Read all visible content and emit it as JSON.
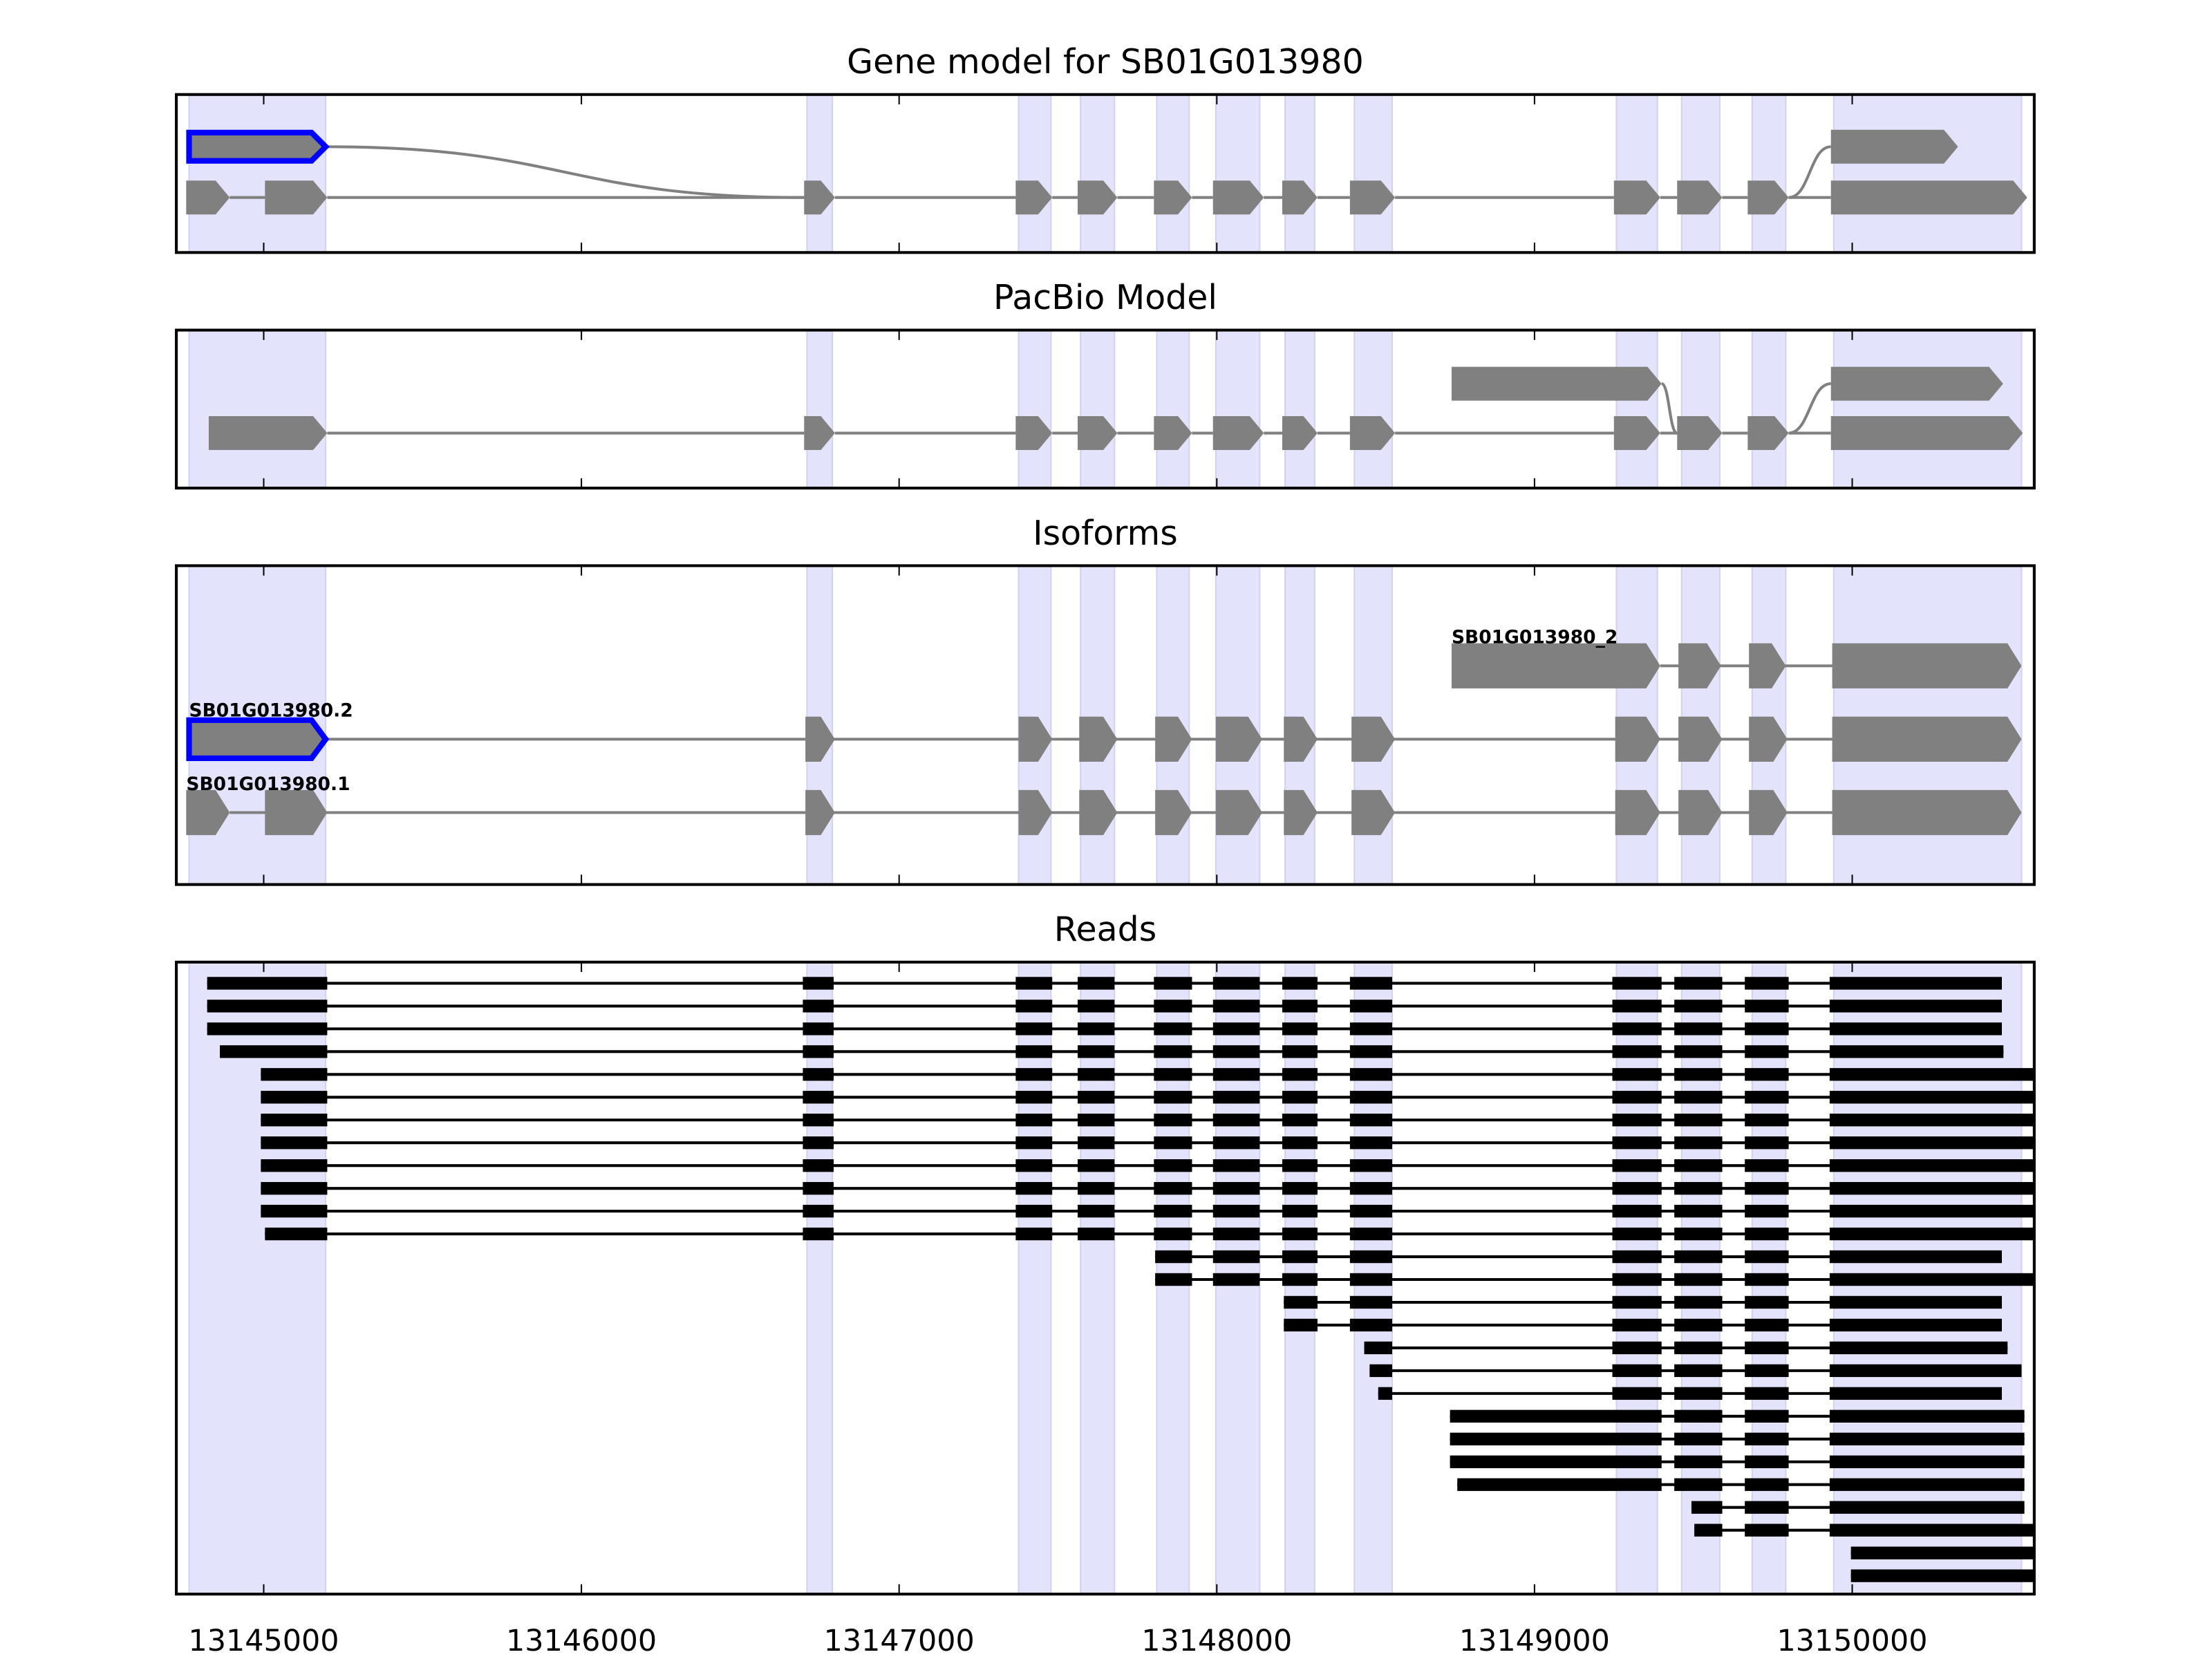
{
  "colors": {
    "band": "#e3e3fb",
    "band_edge": "#d2d2f0",
    "exon": "#808080",
    "highlight": "#0000ff",
    "read": "#000000"
  },
  "chart_data": {
    "type": "gene-track",
    "xlim": [
      13144725,
      13150573
    ],
    "xticks": [
      13145000,
      13146000,
      13147000,
      13148000,
      13149000,
      13150000
    ],
    "xtick_labels": [
      "13145000",
      "13146000",
      "13147000",
      "13148000",
      "13149000",
      "13150000"
    ],
    "exon_bands": [
      [
        13144765,
        13145195
      ],
      [
        13146710,
        13146790
      ],
      [
        13147376,
        13147478
      ],
      [
        13147571,
        13147678
      ],
      [
        13147811,
        13147913
      ],
      [
        13147997,
        13148135
      ],
      [
        13148215,
        13148308
      ],
      [
        13148433,
        13148552
      ],
      [
        13149258,
        13149387
      ],
      [
        13149463,
        13149583
      ],
      [
        13149685,
        13149791
      ],
      [
        13149942,
        13150533
      ]
    ],
    "panels": [
      {
        "title": "Gene model for SB01G013980",
        "rows": 2,
        "nodes": [
          {
            "s": 13144765,
            "e": 13145195,
            "row": 0,
            "hl": true
          },
          {
            "s": 13144756,
            "e": 13144893,
            "row": 1
          },
          {
            "s": 13145004,
            "e": 13145200,
            "row": 1
          },
          {
            "s": 13146701,
            "e": 13146798,
            "row": 1
          },
          {
            "s": 13147367,
            "e": 13147482,
            "row": 1
          },
          {
            "s": 13147562,
            "e": 13147687,
            "row": 1
          },
          {
            "s": 13147802,
            "e": 13147922,
            "row": 1
          },
          {
            "s": 13147988,
            "e": 13148148,
            "row": 1
          },
          {
            "s": 13148206,
            "e": 13148317,
            "row": 1
          },
          {
            "s": 13148419,
            "e": 13148561,
            "row": 1
          },
          {
            "s": 13149250,
            "e": 13149396,
            "row": 1
          },
          {
            "s": 13149449,
            "e": 13149591,
            "row": 1
          },
          {
            "s": 13149671,
            "e": 13149800,
            "row": 1
          },
          {
            "s": 13149933,
            "e": 13150551,
            "row": 1
          },
          {
            "s": 13149933,
            "e": 13150333,
            "row": 0
          }
        ],
        "edges": [
          [
            0,
            3
          ],
          [
            1,
            2
          ],
          [
            2,
            3
          ],
          [
            3,
            4
          ],
          [
            4,
            5
          ],
          [
            5,
            6
          ],
          [
            6,
            7
          ],
          [
            7,
            8
          ],
          [
            8,
            9
          ],
          [
            9,
            10
          ],
          [
            10,
            11
          ],
          [
            11,
            12
          ],
          [
            12,
            13
          ],
          [
            12,
            14
          ]
        ]
      },
      {
        "title": "PacBio Model",
        "rows": 2,
        "nodes": [
          {
            "s": 13144827,
            "e": 13145200,
            "row": 1
          },
          {
            "s": 13146701,
            "e": 13146798,
            "row": 1
          },
          {
            "s": 13147367,
            "e": 13147482,
            "row": 1
          },
          {
            "s": 13147562,
            "e": 13147687,
            "row": 1
          },
          {
            "s": 13147802,
            "e": 13147922,
            "row": 1
          },
          {
            "s": 13147988,
            "e": 13148148,
            "row": 1
          },
          {
            "s": 13148206,
            "e": 13148317,
            "row": 1
          },
          {
            "s": 13148419,
            "e": 13148561,
            "row": 1
          },
          {
            "s": 13149250,
            "e": 13149396,
            "row": 1
          },
          {
            "s": 13149449,
            "e": 13149591,
            "row": 1
          },
          {
            "s": 13149671,
            "e": 13149800,
            "row": 1
          },
          {
            "s": 13149933,
            "e": 13150537,
            "row": 1
          },
          {
            "s": 13148739,
            "e": 13149400,
            "row": 0
          },
          {
            "s": 13149933,
            "e": 13150475,
            "row": 0
          }
        ],
        "edges": [
          [
            0,
            1
          ],
          [
            1,
            2
          ],
          [
            2,
            3
          ],
          [
            3,
            4
          ],
          [
            4,
            5
          ],
          [
            5,
            6
          ],
          [
            6,
            7
          ],
          [
            7,
            8
          ],
          [
            8,
            9
          ],
          [
            9,
            10
          ],
          [
            10,
            11
          ],
          [
            12,
            9
          ],
          [
            10,
            13
          ]
        ]
      },
      {
        "title": "Isoforms",
        "isoforms": [
          {
            "label": "SB01G013980_2",
            "exons": [
              [
                13148739,
                13149396
              ],
              [
                13149453,
                13149587
              ],
              [
                13149675,
                13149791
              ],
              [
                13149937,
                13150533
              ]
            ]
          },
          {
            "label": "SB01G013980.2",
            "hl_first": true,
            "exons": [
              [
                13144765,
                13145195
              ],
              [
                13146705,
                13146798
              ],
              [
                13147376,
                13147482
              ],
              [
                13147567,
                13147687
              ],
              [
                13147806,
                13147922
              ],
              [
                13147997,
                13148143
              ],
              [
                13148211,
                13148317
              ],
              [
                13148424,
                13148561
              ],
              [
                13149254,
                13149396
              ],
              [
                13149453,
                13149591
              ],
              [
                13149675,
                13149796
              ],
              [
                13149937,
                13150533
              ]
            ]
          },
          {
            "label": "SB01G013980.1",
            "exons": [
              [
                13144756,
                13144893
              ],
              [
                13145004,
                13145200
              ],
              [
                13146705,
                13146798
              ],
              [
                13147376,
                13147482
              ],
              [
                13147567,
                13147687
              ],
              [
                13147806,
                13147922
              ],
              [
                13147997,
                13148143
              ],
              [
                13148211,
                13148317
              ],
              [
                13148424,
                13148561
              ],
              [
                13149254,
                13149396
              ],
              [
                13149453,
                13149591
              ],
              [
                13149675,
                13149796
              ],
              [
                13149937,
                13150533
              ]
            ]
          }
        ]
      },
      {
        "title": "Reads",
        "read_exons": [
          [
            13144700,
            13145200
          ],
          [
            13146697,
            13146794
          ],
          [
            13147367,
            13147482
          ],
          [
            13147562,
            13147678
          ],
          [
            13147802,
            13147922
          ],
          [
            13147988,
            13148135
          ],
          [
            13148206,
            13148317
          ],
          [
            13148419,
            13148552
          ],
          [
            13149245,
            13149400
          ],
          [
            13149440,
            13149591
          ],
          [
            13149662,
            13149800
          ],
          [
            13149929,
            13150650
          ]
        ],
        "alt_exon": [
          13148734,
          13149400
        ],
        "reads": [
          {
            "s": 13144822,
            "e": 13150471
          },
          {
            "s": 13144822,
            "e": 13150471
          },
          {
            "s": 13144822,
            "e": 13150471
          },
          {
            "s": 13144862,
            "e": 13150476
          },
          {
            "s": 13144991,
            "e": 13150600
          },
          {
            "s": 13144991,
            "e": 13150600
          },
          {
            "s": 13144991,
            "e": 13150600
          },
          {
            "s": 13144991,
            "e": 13150600
          },
          {
            "s": 13144991,
            "e": 13150600
          },
          {
            "s": 13144991,
            "e": 13150600
          },
          {
            "s": 13144991,
            "e": 13150600
          },
          {
            "s": 13145004,
            "e": 13150600
          },
          {
            "s": 13147806,
            "e": 13150471
          },
          {
            "s": 13147806,
            "e": 13150600
          },
          {
            "s": 13148211,
            "e": 13150471
          },
          {
            "s": 13148211,
            "e": 13150471
          },
          {
            "s": 13148464,
            "e": 13150489
          },
          {
            "s": 13148481,
            "e": 13150533
          },
          {
            "s": 13148508,
            "e": 13150471
          },
          {
            "s": 13148734,
            "e": 13150542,
            "alt": true
          },
          {
            "s": 13148734,
            "e": 13150542,
            "alt": true
          },
          {
            "s": 13148734,
            "e": 13150542,
            "alt": true
          },
          {
            "s": 13148757,
            "e": 13150542,
            "alt": true
          },
          {
            "s": 13149494,
            "e": 13150542
          },
          {
            "s": 13149503,
            "e": 13150600
          },
          {
            "s": 13149996,
            "e": 13150600
          },
          {
            "s": 13149996,
            "e": 13150600
          }
        ]
      }
    ]
  }
}
